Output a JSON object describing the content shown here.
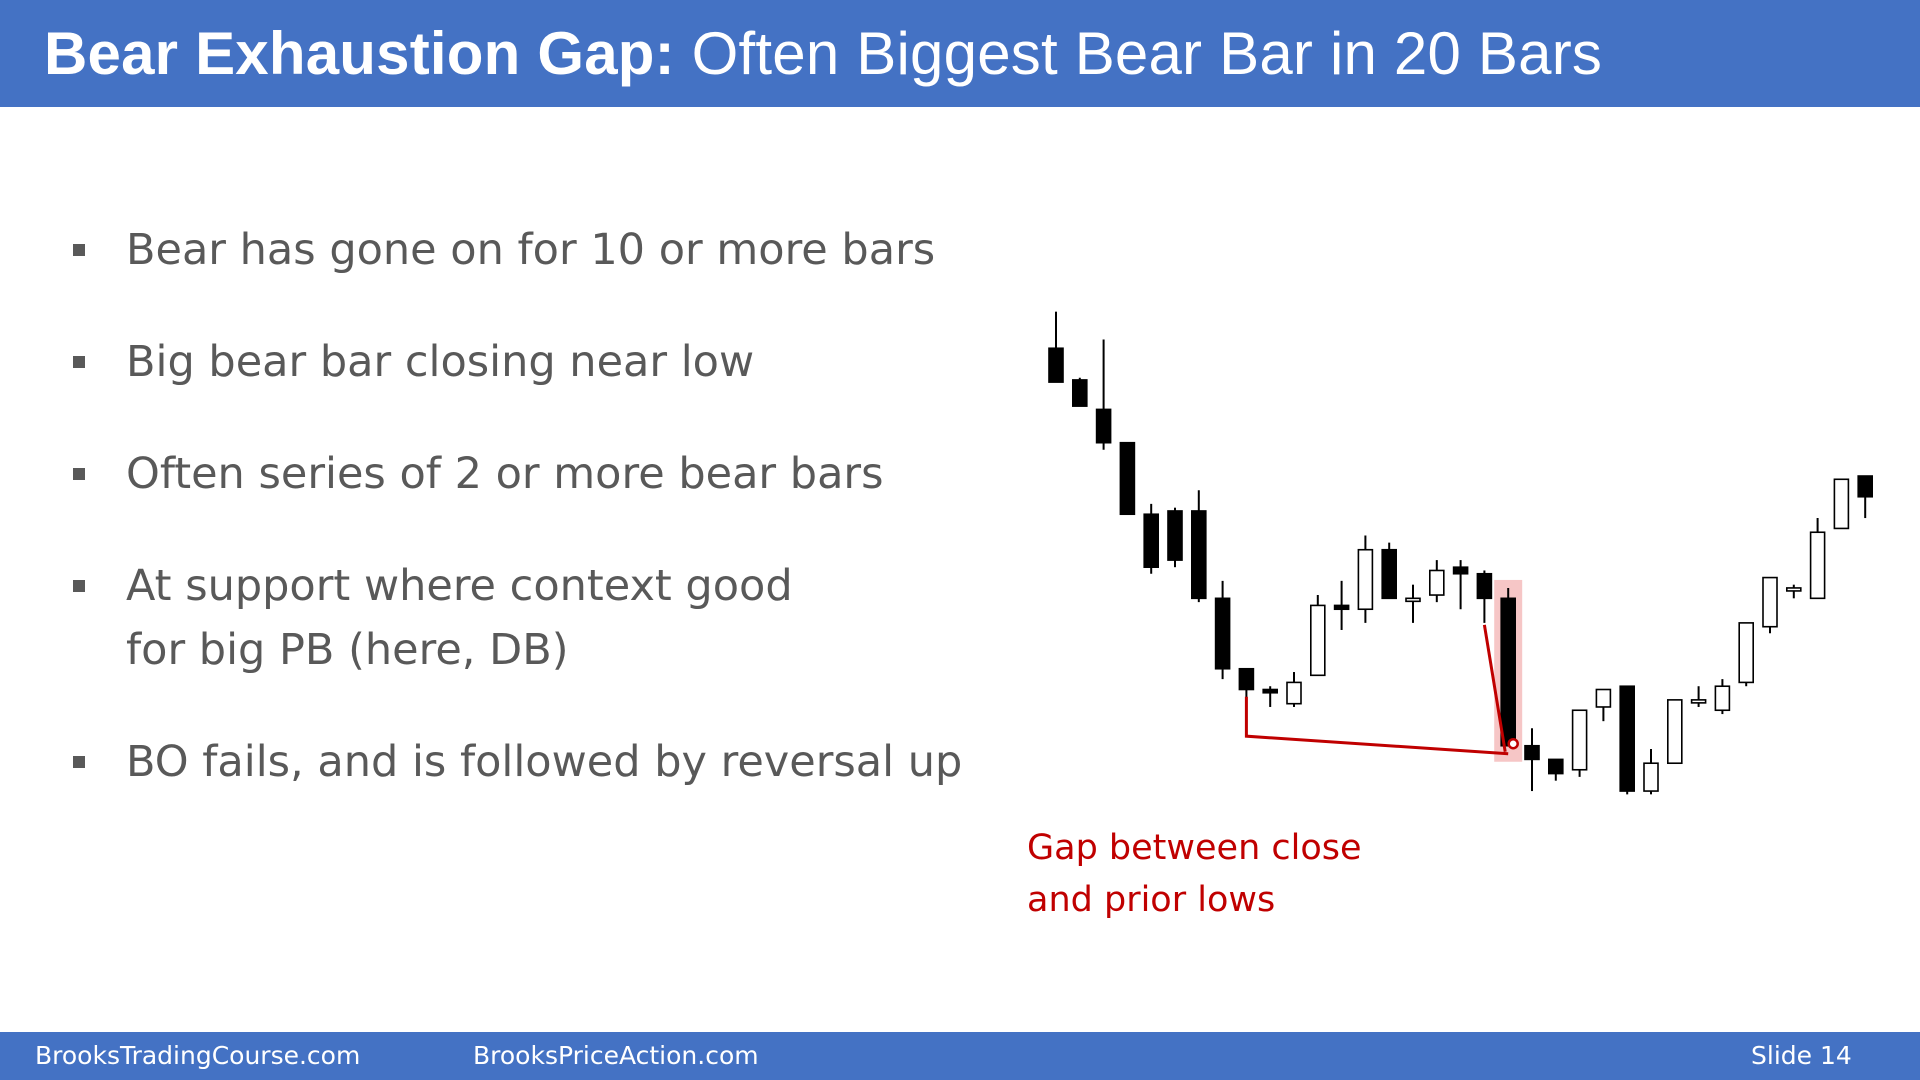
{
  "slide": {
    "title_bold": "Bear Exhaustion Gap:",
    "title_rest": " Often Biggest Bear Bar in 20 Bars",
    "bullets": [
      {
        "lines": [
          "Bear has gone on for 10 or more bars"
        ]
      },
      {
        "lines": [
          "Big bear bar closing near low"
        ]
      },
      {
        "lines": [
          "Often series of 2 or more bear bars"
        ]
      },
      {
        "lines": [
          "At support where context good",
          "for big PB (here, DB)"
        ]
      },
      {
        "lines": [
          "BO fails, and is followed by reversal up"
        ]
      }
    ],
    "annotation": [
      "Gap between close",
      "and prior lows"
    ],
    "footer": {
      "left": "BrooksTradingCourse.com",
      "center": "BrooksPriceAction.com",
      "right": "Slide  14"
    }
  },
  "colors": {
    "accent": "#4472c4",
    "bullet_text": "#595959",
    "annotation": "#c00000",
    "bear_candle": "#000000",
    "bull_candle": "#ffffff",
    "highlight": "#f4b8b8"
  },
  "chart_data": {
    "type": "candlestick",
    "title": "",
    "xlabel": "",
    "ylabel": "",
    "axes_shown": false,
    "grid": false,
    "ylim": [
      0,
      100
    ],
    "bars": [
      {
        "i": 1,
        "o": 87.5,
        "h": 94.2,
        "l": 81.3,
        "c": 81.3
      },
      {
        "i": 2,
        "o": 81.7,
        "h": 82.1,
        "l": 76.9,
        "c": 76.9
      },
      {
        "i": 3,
        "o": 76.3,
        "h": 89.1,
        "l": 68.9,
        "c": 70.2
      },
      {
        "i": 4,
        "o": 70.2,
        "h": 70.2,
        "l": 57.1,
        "c": 57.1
      },
      {
        "i": 5,
        "o": 57.1,
        "h": 59.0,
        "l": 46.2,
        "c": 47.4
      },
      {
        "i": 6,
        "o": 57.7,
        "h": 58.3,
        "l": 47.4,
        "c": 48.7
      },
      {
        "i": 7,
        "o": 57.7,
        "h": 61.5,
        "l": 41.0,
        "c": 41.7
      },
      {
        "i": 8,
        "o": 41.7,
        "h": 44.9,
        "l": 26.9,
        "c": 28.8
      },
      {
        "i": 9,
        "o": 28.8,
        "h": 28.8,
        "l": 19.2,
        "c": 25.0
      },
      {
        "i": 10,
        "o": 25.0,
        "h": 25.6,
        "l": 21.8,
        "c": 24.4
      },
      {
        "i": 11,
        "o": 22.4,
        "h": 28.2,
        "l": 21.8,
        "c": 26.3
      },
      {
        "i": 12,
        "o": 27.6,
        "h": 42.3,
        "l": 27.6,
        "c": 40.4
      },
      {
        "i": 13,
        "o": 40.4,
        "h": 44.9,
        "l": 35.9,
        "c": 39.7
      },
      {
        "i": 14,
        "o": 39.7,
        "h": 53.2,
        "l": 37.2,
        "c": 50.6
      },
      {
        "i": 15,
        "o": 50.6,
        "h": 51.9,
        "l": 41.7,
        "c": 41.7
      },
      {
        "i": 16,
        "o": 41.7,
        "h": 44.2,
        "l": 37.2,
        "c": 41.7
      },
      {
        "i": 17,
        "o": 42.3,
        "h": 48.7,
        "l": 41.0,
        "c": 46.8
      },
      {
        "i": 18,
        "o": 47.4,
        "h": 48.7,
        "l": 39.7,
        "c": 46.2
      },
      {
        "i": 19,
        "o": 46.2,
        "h": 46.8,
        "l": 37.2,
        "c": 41.7
      },
      {
        "i": 20,
        "o": 41.7,
        "h": 43.6,
        "l": 14.7,
        "c": 14.7
      },
      {
        "i": 21,
        "o": 14.7,
        "h": 17.9,
        "l": 6.4,
        "c": 12.2
      },
      {
        "i": 22,
        "o": 12.2,
        "h": 12.2,
        "l": 8.3,
        "c": 9.6
      },
      {
        "i": 23,
        "o": 10.3,
        "h": 21.2,
        "l": 9.0,
        "c": 21.2
      },
      {
        "i": 24,
        "o": 21.8,
        "h": 25.0,
        "l": 19.2,
        "c": 25.0
      },
      {
        "i": 25,
        "o": 25.6,
        "h": 25.6,
        "l": 5.8,
        "c": 6.4
      },
      {
        "i": 26,
        "o": 6.4,
        "h": 14.1,
        "l": 5.8,
        "c": 11.5
      },
      {
        "i": 27,
        "o": 11.5,
        "h": 23.1,
        "l": 11.5,
        "c": 23.1
      },
      {
        "i": 28,
        "o": 23.1,
        "h": 25.6,
        "l": 21.8,
        "c": 23.1
      },
      {
        "i": 29,
        "o": 21.2,
        "h": 26.9,
        "l": 20.5,
        "c": 25.6
      },
      {
        "i": 30,
        "o": 26.3,
        "h": 37.2,
        "l": 25.6,
        "c": 37.2
      },
      {
        "i": 31,
        "o": 36.5,
        "h": 45.5,
        "l": 35.3,
        "c": 45.5
      },
      {
        "i": 32,
        "o": 43.6,
        "h": 44.2,
        "l": 41.7,
        "c": 43.6
      },
      {
        "i": 33,
        "o": 41.7,
        "h": 56.4,
        "l": 41.7,
        "c": 53.8
      },
      {
        "i": 34,
        "o": 54.5,
        "h": 63.5,
        "l": 54.5,
        "c": 63.5
      },
      {
        "i": 35,
        "o": 64.1,
        "h": 64.1,
        "l": 56.4,
        "c": 60.3
      }
    ]
  }
}
